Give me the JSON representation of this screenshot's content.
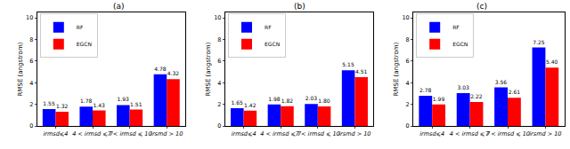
{
  "chart_data": [
    {
      "type": "bar",
      "title": "(a)",
      "y_label": "RMSE (angstrom)",
      "categories": [
        "irmsd⩽4",
        "4 < irmsd ⩽ 7",
        "7 < irmsd ⩽ 10",
        "irsmd > 10"
      ],
      "series": [
        {
          "name": "RF",
          "color": "#0000ff",
          "values": [
            1.55,
            1.78,
            1.93,
            4.78
          ]
        },
        {
          "name": "EGCN",
          "color": "#ff0000",
          "values": [
            1.32,
            1.43,
            1.51,
            4.32
          ]
        }
      ],
      "ylim": [
        0,
        10.5
      ],
      "yticks": [
        0,
        2,
        4,
        6,
        8,
        10
      ],
      "grid": false,
      "legend": "upper left",
      "data_labels": true
    },
    {
      "type": "bar",
      "title": "(b)",
      "y_label": "RMSE (angstrom)",
      "categories": [
        "irmsd⩽4",
        "4 < irmsd ⩽ 7",
        "7 < irmsd ⩽ 10",
        "irsmd > 10"
      ],
      "series": [
        {
          "name": "RF",
          "color": "#0000ff",
          "values": [
            1.65,
            1.98,
            2.03,
            5.15
          ]
        },
        {
          "name": "EGCN",
          "color": "#ff0000",
          "values": [
            1.42,
            1.82,
            1.8,
            4.51
          ]
        }
      ],
      "ylim": [
        0,
        10.5
      ],
      "yticks": [
        0,
        2,
        4,
        6,
        8,
        10
      ],
      "grid": false,
      "legend": "upper left",
      "data_labels": true
    },
    {
      "type": "bar",
      "title": "(c)",
      "y_label": "RMSE (angstrom)",
      "categories": [
        "irmsd⩽4",
        "4 < irmsd ⩽ 7",
        "7 < irmsd ⩽ 10",
        "irsmd > 10"
      ],
      "series": [
        {
          "name": "RF",
          "color": "#0000ff",
          "values": [
            2.78,
            3.03,
            3.56,
            7.25
          ]
        },
        {
          "name": "EGCN",
          "color": "#ff0000",
          "values": [
            1.99,
            2.22,
            2.61,
            5.4
          ]
        }
      ],
      "ylim": [
        0,
        10.5
      ],
      "yticks": [
        0,
        2,
        4,
        6,
        8,
        10
      ],
      "grid": false,
      "legend": "upper left",
      "data_labels": true
    }
  ]
}
